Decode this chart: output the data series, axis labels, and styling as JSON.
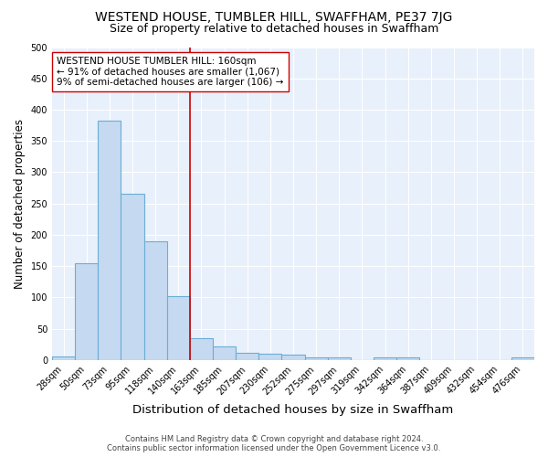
{
  "title": "WESTEND HOUSE, TUMBLER HILL, SWAFFHAM, PE37 7JG",
  "subtitle": "Size of property relative to detached houses in Swaffham",
  "xlabel": "Distribution of detached houses by size in Swaffham",
  "ylabel": "Number of detached properties",
  "footer_line1": "Contains HM Land Registry data © Crown copyright and database right 2024.",
  "footer_line2": "Contains public sector information licensed under the Open Government Licence v3.0.",
  "categories": [
    "28sqm",
    "50sqm",
    "73sqm",
    "95sqm",
    "118sqm",
    "140sqm",
    "163sqm",
    "185sqm",
    "207sqm",
    "230sqm",
    "252sqm",
    "275sqm",
    "297sqm",
    "319sqm",
    "342sqm",
    "364sqm",
    "387sqm",
    "409sqm",
    "432sqm",
    "454sqm",
    "476sqm"
  ],
  "values": [
    6,
    155,
    383,
    265,
    190,
    102,
    35,
    22,
    12,
    10,
    9,
    4,
    4,
    0,
    4,
    4,
    0,
    0,
    0,
    0,
    4
  ],
  "bar_color": "#c5d9f0",
  "bar_edge_color": "#6baed6",
  "bar_linewidth": 0.8,
  "background_color": "#e8f0fb",
  "grid_color": "#ffffff",
  "vline_x": 6,
  "vline_color": "#cc0000",
  "vline_linewidth": 1.2,
  "annotation_text": "WESTEND HOUSE TUMBLER HILL: 160sqm\n← 91% of detached houses are smaller (1,067)\n9% of semi-detached houses are larger (106) →",
  "annotation_box_color": "#ffffff",
  "annotation_box_edge": "#cc0000",
  "ylim": [
    0,
    500
  ],
  "yticks": [
    0,
    50,
    100,
    150,
    200,
    250,
    300,
    350,
    400,
    450,
    500
  ],
  "title_fontsize": 10,
  "subtitle_fontsize": 9,
  "xlabel_fontsize": 9.5,
  "ylabel_fontsize": 8.5,
  "tick_fontsize": 7,
  "annotation_fontsize": 7.5,
  "footer_fontsize": 6,
  "fig_bg": "#ffffff"
}
